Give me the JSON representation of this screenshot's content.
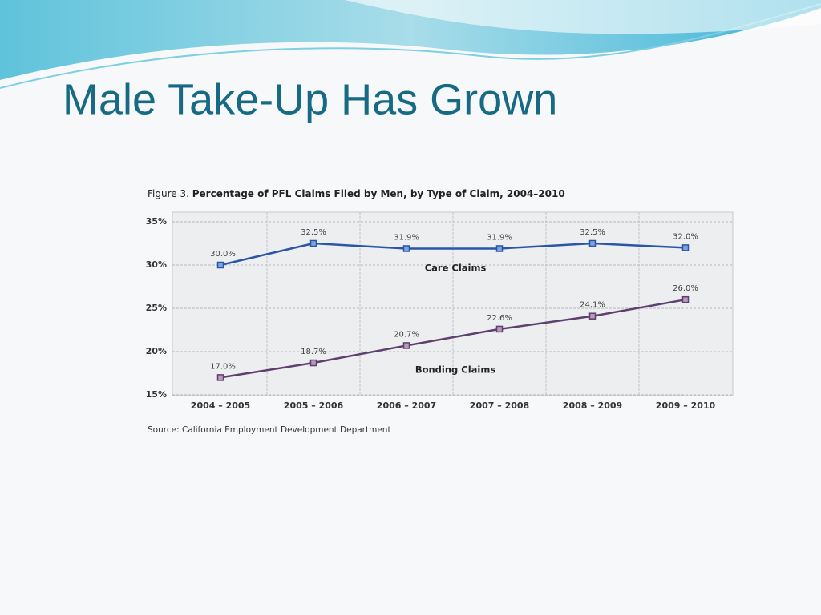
{
  "slide": {
    "title": "Male Take-Up Has Grown"
  },
  "chart_data": {
    "type": "line",
    "figure_label": "Figure 3.",
    "title": "Percentage of PFL Claims Filed by Men, by Type of Claim, 2004–2010",
    "source": "Source: California Employment Development Department",
    "categories": [
      "2004 – 2005",
      "2005 – 2006",
      "2006 – 2007",
      "2007 – 2008",
      "2008 – 2009",
      "2009 – 2010"
    ],
    "series": [
      {
        "name": "Care Claims",
        "color": "#2a56a8",
        "values": [
          30.0,
          32.5,
          31.9,
          31.9,
          32.5,
          32.0
        ],
        "value_labels": [
          "30.0%",
          "32.5%",
          "31.9%",
          "31.9%",
          "32.5%",
          "32.0%"
        ]
      },
      {
        "name": "Bonding Claims",
        "color": "#5e3f6e",
        "values": [
          17.0,
          18.7,
          20.7,
          22.6,
          24.1,
          26.0
        ],
        "value_labels": [
          "17.0%",
          "18.7%",
          "20.7%",
          "22.6%",
          "24.1%",
          "26.0%"
        ]
      }
    ],
    "ylim": [
      15,
      35
    ],
    "yticks": [
      {
        "value": 15,
        "label": "15%"
      },
      {
        "value": 20,
        "label": "20%"
      },
      {
        "value": 25,
        "label": "25%"
      },
      {
        "value": 30,
        "label": "30%"
      },
      {
        "value": 35,
        "label": "35%"
      }
    ],
    "grid": true
  }
}
